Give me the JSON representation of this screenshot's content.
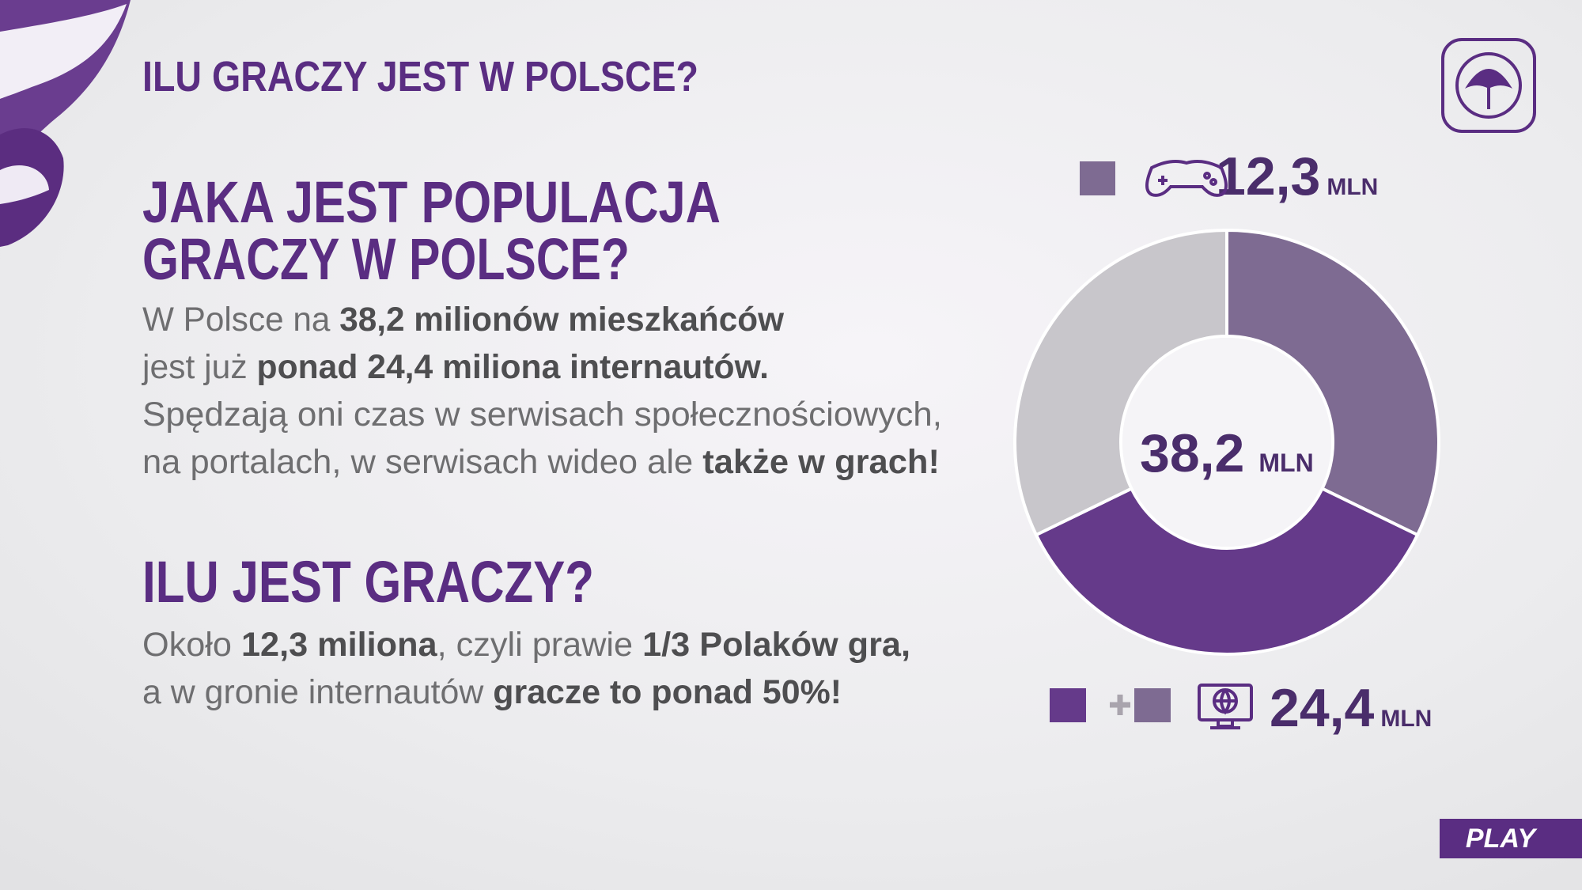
{
  "header": {
    "title": "ILU GRACZY JEST W POLSCE?"
  },
  "sections": [
    {
      "heading": [
        "JAKA JEST POPULACJA",
        "GRACZY W POLSCE?"
      ],
      "body": [
        [
          {
            "text": "W Polsce na ",
            "bold": false
          },
          {
            "text": "38,2 milionów mieszkańców",
            "bold": true
          }
        ],
        [
          {
            "text": "jest już ",
            "bold": false
          },
          {
            "text": "ponad 24,4 miliona internautów.",
            "bold": true
          }
        ],
        [
          {
            "text": "Spędzają oni czas w serwisach społecznościowych,",
            "bold": false
          }
        ],
        [
          {
            "text": "na portalach, w serwisach wideo ale ",
            "bold": false
          },
          {
            "text": "także w grach!",
            "bold": true
          }
        ]
      ]
    },
    {
      "heading": [
        "ILU JEST GRACZY?"
      ],
      "body": [
        [
          {
            "text": "Około ",
            "bold": false
          },
          {
            "text": "12,3 miliona",
            "bold": true
          },
          {
            "text": ", czyli prawie ",
            "bold": false
          },
          {
            "text": "1/3 Polaków gra,",
            "bold": true
          }
        ],
        [
          {
            "text": "a w gronie internautów ",
            "bold": false
          },
          {
            "text": "gracze to ponad 50%!",
            "bold": true
          }
        ]
      ]
    }
  ],
  "chart_data": {
    "type": "donut",
    "values": [
      12.3,
      13.6,
      12.3
    ],
    "colors": [
      "#7e6b92",
      "#653a8a",
      "#c8c6cb"
    ],
    "center_label": "38,2",
    "center_unit": "MLN",
    "legend": [
      {
        "label": "12,3",
        "unit": "MLN"
      },
      {
        "label": "24,4",
        "unit": "MLN"
      }
    ]
  },
  "logo": "PLAY"
}
